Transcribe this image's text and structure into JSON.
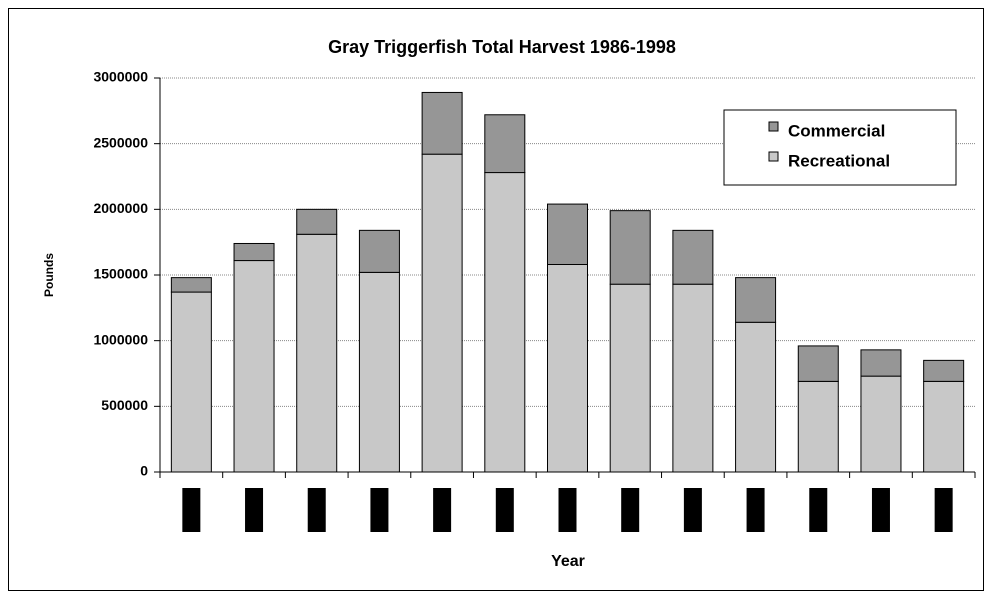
{
  "chart_data": {
    "type": "stacked_bar",
    "title": "Gray Triggerfish Total Harvest 1986-1998",
    "x_label": "Year",
    "y_label": "Pounds",
    "categories": [
      null,
      null,
      null,
      null,
      null,
      null,
      null,
      null,
      null,
      null,
      null,
      null,
      null
    ],
    "series": [
      {
        "name": "Recreational",
        "color": "#c8c8c8",
        "values": [
          1370000,
          1610000,
          1810000,
          1520000,
          2420000,
          2280000,
          1580000,
          1430000,
          1430000,
          1140000,
          690000,
          730000,
          690000
        ]
      },
      {
        "name": "Commercial",
        "color": "#969696",
        "values": [
          110000,
          130000,
          190000,
          320000,
          470000,
          440000,
          460000,
          560000,
          410000,
          340000,
          270000,
          200000,
          160000
        ]
      }
    ],
    "ylim": [
      0,
      3000000
    ],
    "yticks": [
      0,
      500000,
      1000000,
      1500000,
      2000000,
      2500000,
      3000000
    ],
    "grid": true,
    "legend": "top-right"
  }
}
